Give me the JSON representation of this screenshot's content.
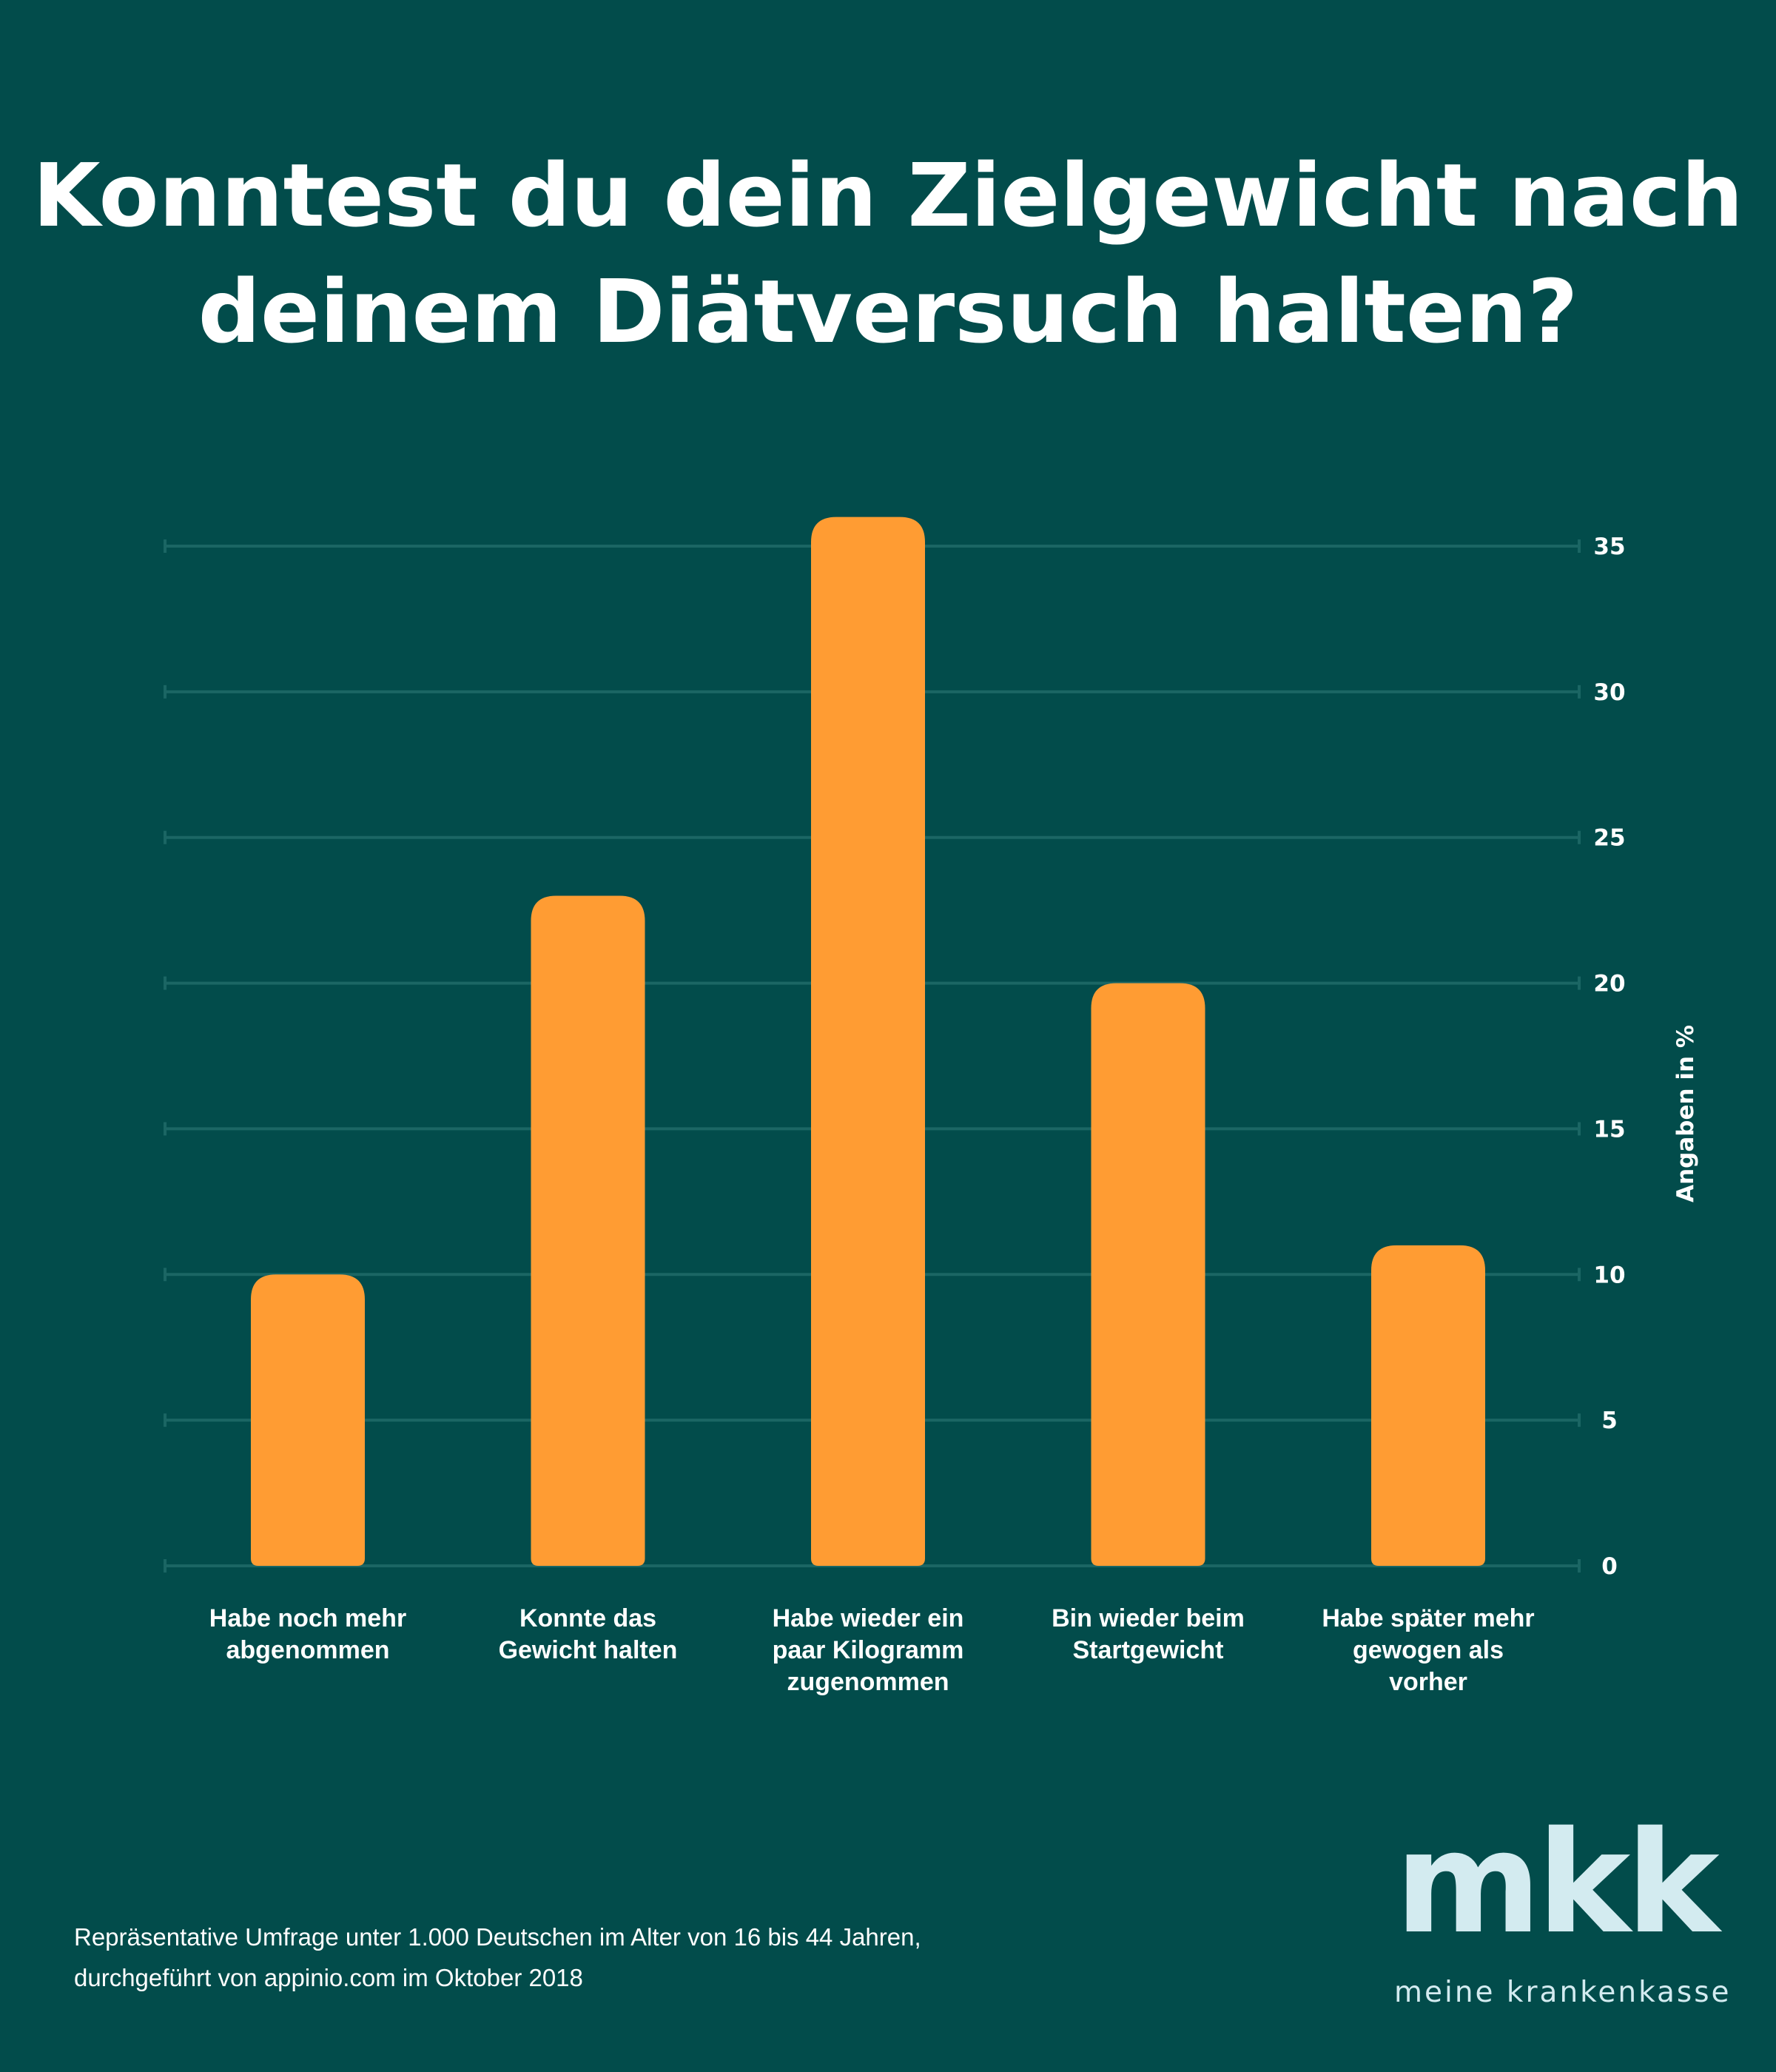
{
  "chart_data": {
    "type": "bar",
    "title_lines": [
      "Konntest du dein Zielgewicht nach",
      "deinem Diätversuch halten?"
    ],
    "categories": [
      [
        "Habe noch mehr",
        "abgenommen"
      ],
      [
        "Konnte das",
        "Gewicht halten"
      ],
      [
        "Habe wieder ein",
        "paar Kilogramm",
        "zugenommen"
      ],
      [
        "Bin wieder beim",
        "Startgewicht"
      ],
      [
        "Habe später mehr",
        "gewogen als",
        "vorher"
      ]
    ],
    "values": [
      10,
      23,
      36,
      20,
      11
    ],
    "ylabel": "Angaben in %",
    "yticks": [
      "0",
      "5",
      "10",
      "15",
      "20",
      "25",
      "30",
      "35"
    ],
    "ylim": [
      0,
      35
    ],
    "grid": true,
    "y_axis_side": "right",
    "colors": {
      "bar": "#ff9c33",
      "background": "#024c4b",
      "grid": "#1b6664"
    }
  },
  "footer": {
    "lines": [
      "Repräsentative Umfrage unter 1.000 Deutschen im Alter von 16 bis 44 Jahren,",
      "durchgeführt von appinio.com im Oktober 2018"
    ]
  },
  "logo": {
    "mark": "mkk",
    "tagline": "meine krankenkasse"
  }
}
